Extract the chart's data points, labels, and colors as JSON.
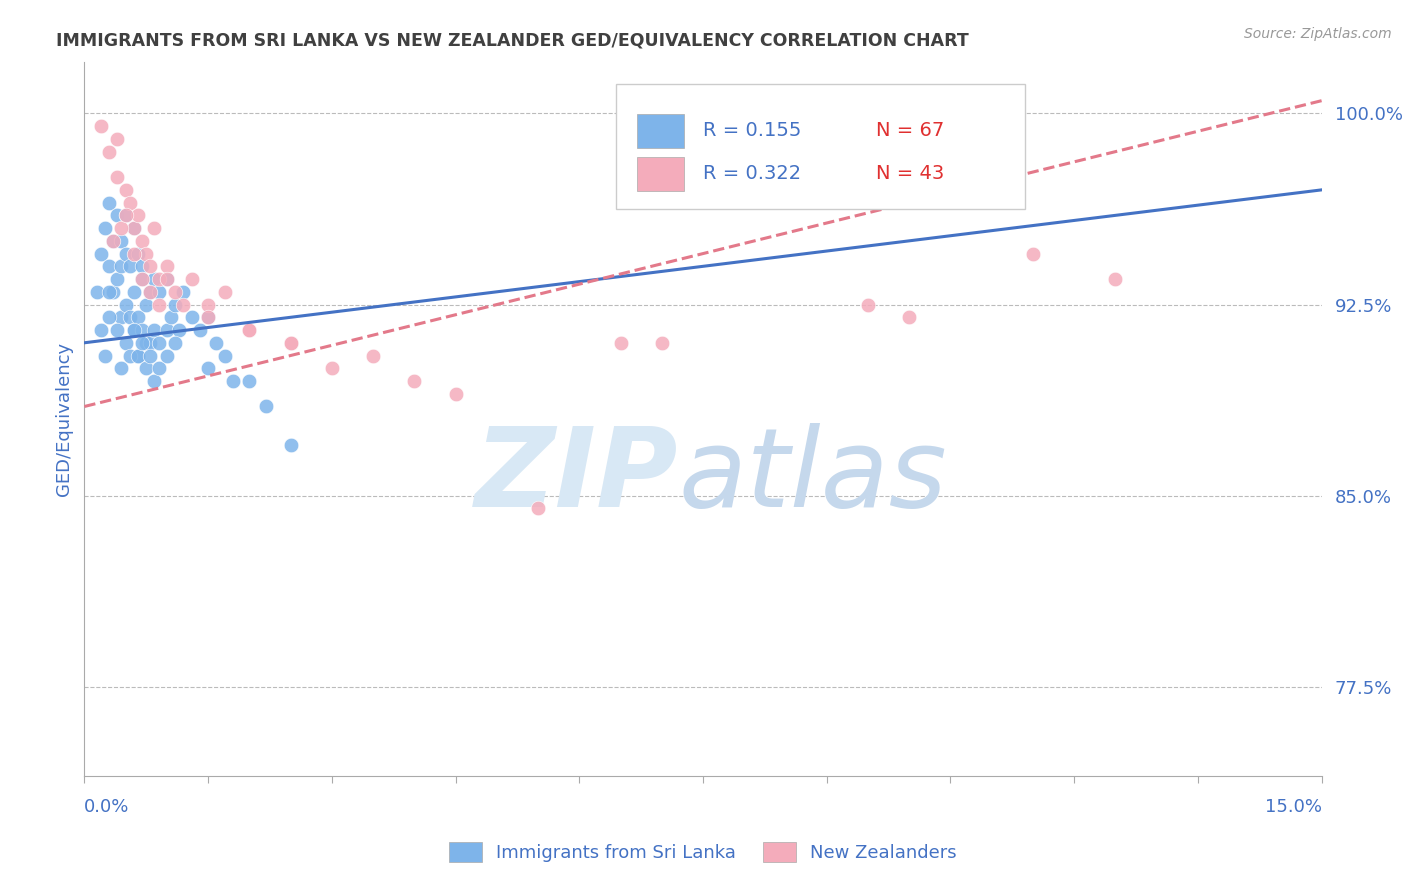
{
  "title": "IMMIGRANTS FROM SRI LANKA VS NEW ZEALANDER GED/EQUIVALENCY CORRELATION CHART",
  "source": "Source: ZipAtlas.com",
  "ylabel": "GED/Equivalency",
  "xmin": 0.0,
  "xmax": 15.0,
  "ymin": 74.0,
  "ymax": 102.0,
  "yticks": [
    77.5,
    85.0,
    92.5,
    100.0
  ],
  "ytick_labels": [
    "77.5%",
    "85.0%",
    "92.5%",
    "100.0%"
  ],
  "legend_r1": "R = 0.155",
  "legend_n1": "N = 67",
  "legend_r2": "R = 0.322",
  "legend_n2": "N = 43",
  "blue_color": "#7EB4EA",
  "pink_color": "#F4ACBB",
  "blue_line_color": "#4472C4",
  "pink_line_color": "#E3798A",
  "axis_color": "#4472C4",
  "title_color": "#404040",
  "blue_x": [
    0.15,
    0.2,
    0.25,
    0.3,
    0.3,
    0.35,
    0.35,
    0.4,
    0.4,
    0.45,
    0.45,
    0.45,
    0.5,
    0.5,
    0.5,
    0.55,
    0.55,
    0.6,
    0.6,
    0.6,
    0.65,
    0.65,
    0.65,
    0.7,
    0.7,
    0.7,
    0.75,
    0.75,
    0.8,
    0.8,
    0.85,
    0.85,
    0.9,
    0.9,
    1.0,
    1.0,
    1.05,
    1.1,
    1.15,
    1.2,
    1.3,
    1.4,
    1.5,
    1.6,
    1.7,
    1.8,
    2.0,
    2.2,
    2.5,
    0.2,
    0.25,
    0.3,
    0.3,
    0.4,
    0.45,
    0.5,
    0.55,
    0.6,
    0.65,
    0.7,
    0.75,
    0.8,
    0.85,
    0.9,
    1.0,
    1.1,
    1.5
  ],
  "blue_y": [
    93.0,
    94.5,
    95.5,
    96.5,
    94.0,
    95.0,
    93.0,
    96.0,
    93.5,
    94.0,
    92.0,
    95.0,
    94.5,
    92.5,
    96.0,
    94.0,
    92.0,
    95.5,
    93.0,
    91.5,
    94.5,
    92.0,
    90.5,
    94.0,
    91.5,
    93.5,
    92.5,
    91.0,
    93.0,
    91.0,
    93.5,
    91.5,
    93.0,
    91.0,
    93.5,
    91.5,
    92.0,
    92.5,
    91.5,
    93.0,
    92.0,
    91.5,
    92.0,
    91.0,
    90.5,
    89.5,
    89.5,
    88.5,
    87.0,
    91.5,
    90.5,
    92.0,
    93.0,
    91.5,
    90.0,
    91.0,
    90.5,
    91.5,
    90.5,
    91.0,
    90.0,
    90.5,
    89.5,
    90.0,
    90.5,
    91.0,
    90.0
  ],
  "pink_x": [
    0.2,
    0.3,
    0.4,
    0.4,
    0.5,
    0.55,
    0.6,
    0.65,
    0.7,
    0.75,
    0.8,
    0.85,
    0.9,
    1.0,
    1.1,
    1.2,
    1.3,
    1.5,
    1.7,
    2.0,
    2.5,
    3.5,
    4.5,
    6.5,
    9.5,
    11.5,
    0.35,
    0.45,
    0.5,
    0.6,
    0.7,
    0.8,
    0.9,
    1.0,
    1.5,
    2.0,
    2.5,
    3.0,
    4.0,
    5.5,
    7.0,
    10.0,
    12.5
  ],
  "pink_y": [
    99.5,
    98.5,
    97.5,
    99.0,
    97.0,
    96.5,
    95.5,
    96.0,
    95.0,
    94.5,
    94.0,
    95.5,
    93.5,
    94.0,
    93.0,
    92.5,
    93.5,
    92.5,
    93.0,
    91.5,
    91.0,
    90.5,
    89.0,
    91.0,
    92.5,
    94.5,
    95.0,
    95.5,
    96.0,
    94.5,
    93.5,
    93.0,
    92.5,
    93.5,
    92.0,
    91.5,
    91.0,
    90.0,
    89.5,
    84.5,
    91.0,
    92.0,
    93.5
  ],
  "blue_trend_x": [
    0.0,
    15.0
  ],
  "blue_trend_y": [
    91.0,
    97.0
  ],
  "pink_trend_x": [
    0.0,
    15.0
  ],
  "pink_trend_y": [
    88.5,
    100.5
  ],
  "bottom_legend_labels": [
    "Immigrants from Sri Lanka",
    "New Zealanders"
  ]
}
